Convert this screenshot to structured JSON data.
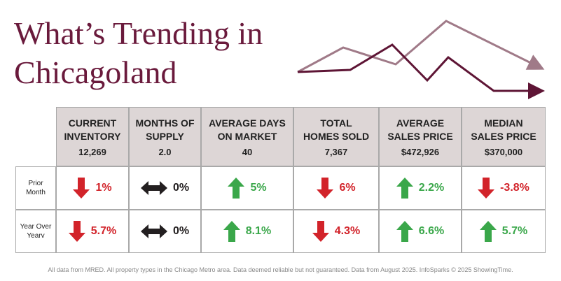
{
  "header": {
    "title": [
      "What’s Trending in",
      "Chicagoland"
    ]
  },
  "table": {
    "columns": [
      {
        "label": [
          "CURRENT",
          "INVENTORY"
        ],
        "value": "12,269"
      },
      {
        "label": [
          "MONTHS OF",
          "SUPPLY"
        ],
        "value": "2.0"
      },
      {
        "label": [
          "AVERAGE DAYS",
          "ON MARKET"
        ],
        "value": "40"
      },
      {
        "label": [
          "TOTAL",
          "HOMES SOLD"
        ],
        "value": "7,367"
      },
      {
        "label": [
          "AVERAGE",
          "SALES PRICE"
        ],
        "value": "$472,926"
      },
      {
        "label": [
          "MEDIAN",
          "SALES PRICE"
        ],
        "value": "$370,000"
      }
    ],
    "rows": [
      {
        "label": [
          "Prior",
          "Month"
        ],
        "cells": [
          {
            "direction": "down",
            "text": "1%"
          },
          {
            "direction": "both",
            "text": "0%"
          },
          {
            "direction": "up",
            "text": "5%"
          },
          {
            "direction": "down",
            "text": "6%"
          },
          {
            "direction": "up",
            "text": "2.2%"
          },
          {
            "direction": "down",
            "text": "-3.8%"
          }
        ]
      },
      {
        "label": [
          "Year Over",
          "Yearv"
        ],
        "cells": [
          {
            "direction": "down",
            "text": "5.7%"
          },
          {
            "direction": "both",
            "text": "0%"
          },
          {
            "direction": "up",
            "text": "8.1%"
          },
          {
            "direction": "down",
            "text": "4.3%"
          },
          {
            "direction": "up",
            "text": "6.6%"
          },
          {
            "direction": "up",
            "text": "5.7%"
          }
        ]
      }
    ],
    "colors": {
      "up": "#3aa74a",
      "down": "#d2232a",
      "both": "#231f20"
    }
  },
  "footer": "All data from MRED. All property types in the Chicago Metro area. Data deemed reliable but not guaranteed. Data from August 2025. InfoSparks © 2025 ShowingTime."
}
